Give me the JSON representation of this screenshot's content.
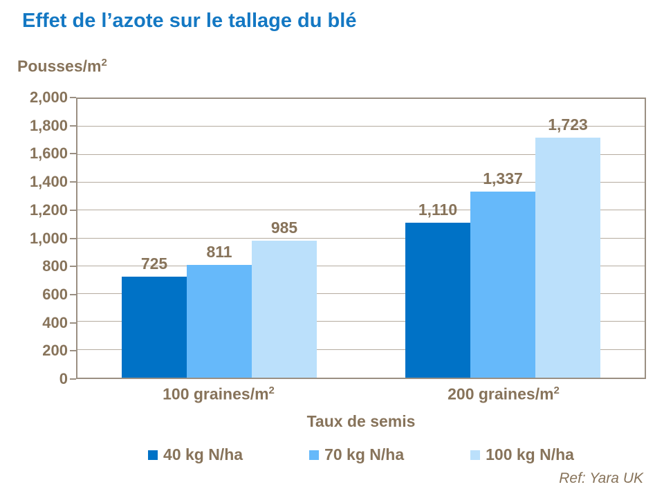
{
  "page": {
    "title": "Effet de l’azote sur le tallage du blé"
  },
  "footer": {
    "ref": "Ref: Yara UK"
  },
  "colors": {
    "title_blue": "#1478C3",
    "text_brown": "#87735A",
    "gridline": "#B5AB9F",
    "axis_border": "#9A8F82",
    "series_colors": [
      "#0072C6",
      "#66B9FA",
      "#BBE0FB"
    ]
  },
  "chart_data": {
    "type": "bar",
    "title": "Effet de l’azote sur le tallage du blé",
    "ylabel": {
      "base": "Pousses/m",
      "sup": "2"
    },
    "xlabel": "Taux de semis",
    "categories": [
      {
        "base": "100 graines/m",
        "sup": "2"
      },
      {
        "base": "200 graines/m",
        "sup": "2"
      }
    ],
    "series": [
      {
        "name": "40 kg N/ha",
        "color": "#0072C6",
        "values": [
          725,
          1110
        ],
        "labels": [
          "725",
          "1,110"
        ]
      },
      {
        "name": "70 kg N/ha",
        "color": "#66B9FA",
        "values": [
          811,
          1337
        ],
        "labels": [
          "811",
          "1,337"
        ]
      },
      {
        "name": "100 kg N/ha",
        "color": "#BBE0FB",
        "values": [
          985,
          1723
        ],
        "labels": [
          "985",
          "1,723"
        ]
      }
    ],
    "ylim": [
      0,
      2000
    ],
    "ytick_step": 200,
    "yticks": [
      "0",
      "200",
      "400",
      "600",
      "800",
      "1,000",
      "1,200",
      "1,400",
      "1,600",
      "1,800",
      "2,000"
    ],
    "grid": true,
    "legend_position": "bottom"
  }
}
